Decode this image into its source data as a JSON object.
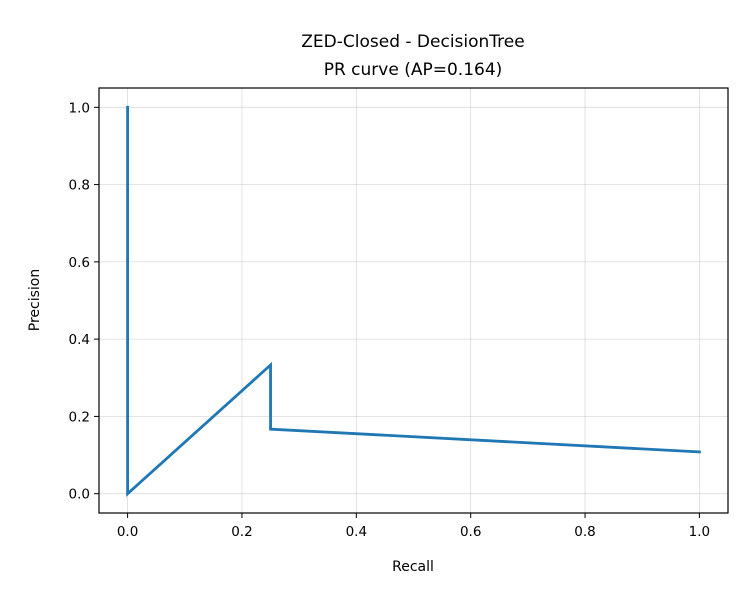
{
  "chart_data": {
    "type": "line",
    "title_line1": "ZED-Closed - DecisionTree",
    "title_line2": "PR curve (AP=0.164)",
    "xlabel": "Recall",
    "ylabel": "Precision",
    "xlim": [
      -0.05,
      1.05
    ],
    "ylim": [
      -0.05,
      1.05
    ],
    "grid": true,
    "x_ticks": [
      0.0,
      0.2,
      0.4,
      0.6,
      0.8,
      1.0
    ],
    "y_ticks": [
      0.0,
      0.2,
      0.4,
      0.6,
      0.8,
      1.0
    ],
    "x_tick_labels": [
      "0.0",
      "0.2",
      "0.4",
      "0.6",
      "0.8",
      "1.0"
    ],
    "y_tick_labels": [
      "0.0",
      "0.2",
      "0.4",
      "0.6",
      "0.8",
      "1.0"
    ],
    "series": [
      {
        "color": "#1f77b4",
        "x": [
          0.0,
          0.0,
          0.25,
          0.25,
          1.0
        ],
        "y": [
          1.0,
          0.0,
          0.333,
          0.167,
          0.108
        ]
      }
    ]
  }
}
